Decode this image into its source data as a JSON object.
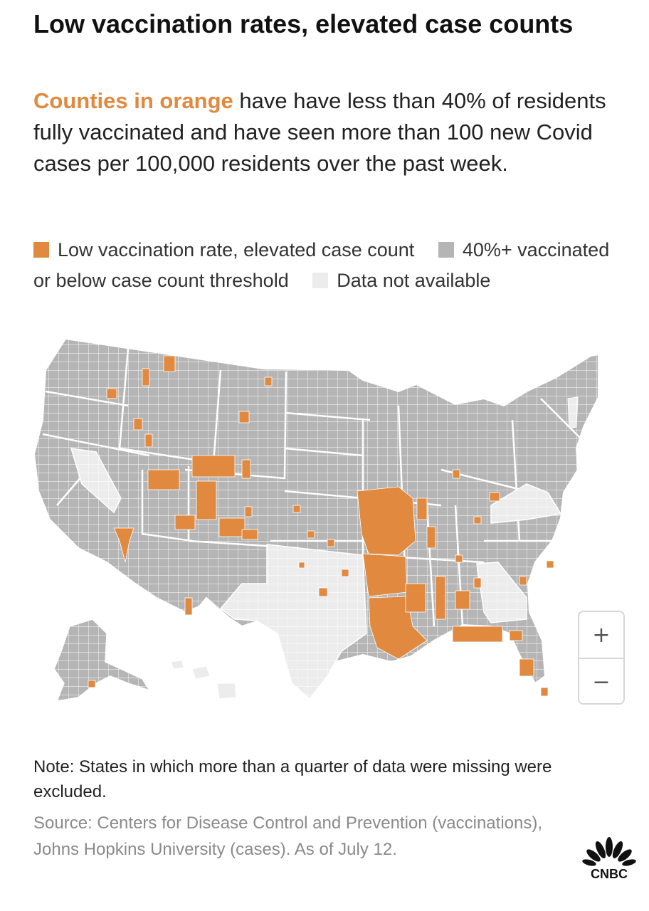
{
  "title": "Low vaccination rates, elevated case counts",
  "subtitle": {
    "highlight": "Counties in orange",
    "rest": " have have less than 40% of residents fully vaccinated and have seen more than 100 new Covid cases per 100,000 residents over the past week."
  },
  "legend": [
    {
      "label": "Low vaccination rate, elevated case count",
      "color": "#e0893f"
    },
    {
      "label": "40%+ vaccinated or below case count threshold",
      "color": "#b5b5b5"
    },
    {
      "label": "Data not available",
      "color": "#ececec"
    }
  ],
  "map": {
    "colors": {
      "elevated": "#e0893f",
      "normal": "#b5b5b5",
      "missing": "#ececec",
      "border": "#ffffff"
    },
    "states_missing_data": [
      "Texas",
      "Georgia",
      "Virginia",
      "Hawaii",
      "Nevada (partial)",
      "Vermont"
    ],
    "cluster_regions": [
      "Missouri",
      "Arkansas",
      "Louisiana",
      "Mississippi",
      "Alabama",
      "Florida panhandle",
      "Utah",
      "Colorado",
      "Wyoming",
      "Idaho",
      "Arizona"
    ]
  },
  "zoom": {
    "in_label": "+",
    "out_label": "−"
  },
  "note": "Note: States in which more than a quarter of data were missing were excluded.",
  "source": "Source: Centers for Disease Control and Prevention (vaccinations), Johns Hopkins University (cases). As of July 12.",
  "logo": {
    "text": "CNBC"
  }
}
